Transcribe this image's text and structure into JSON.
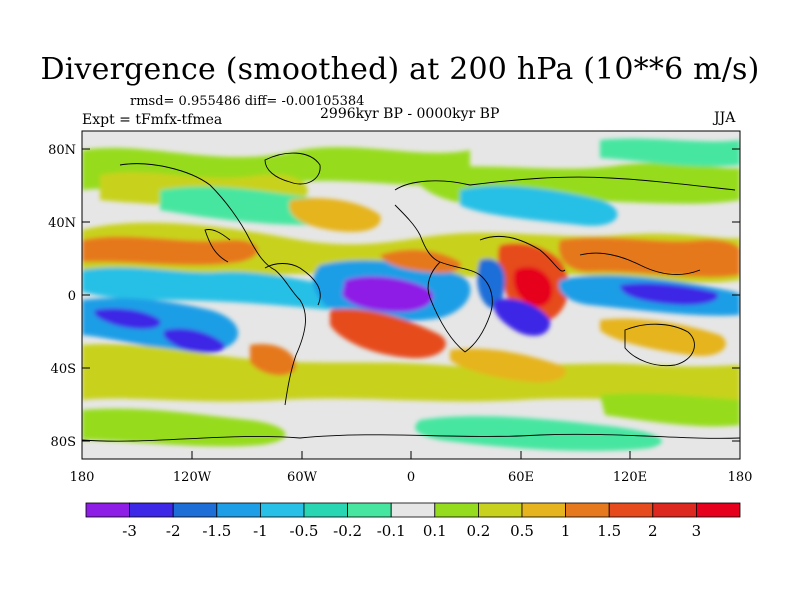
{
  "header": {
    "title": "Divergence (smoothed) at 200 hPa (10**6 m/s)",
    "stats": "rmsd= 0.955486 diff= -0.00105384",
    "experiment": "Expt = tFmfx-tfmea",
    "period": "2996kyr BP - 0000kyr BP",
    "season": "JJA"
  },
  "axes": {
    "lon_ticks": [
      "180",
      "120W",
      "60W",
      "0",
      "60E",
      "120E",
      "180"
    ],
    "lat_ticks": [
      "80N",
      "40N",
      "0",
      "40S",
      "80S"
    ]
  },
  "colorbar": {
    "labels": [
      "-3",
      "-2",
      "-1.5",
      "-1",
      "-0.5",
      "-0.2",
      "-0.1",
      "0.1",
      "0.2",
      "0.5",
      "1",
      "1.5",
      "2",
      "3"
    ],
    "colors": [
      "#8e1ee6",
      "#3c28e6",
      "#1e6ed8",
      "#1e9ee6",
      "#28c0e6",
      "#28d6b4",
      "#46e6a0",
      "#e6e6e6",
      "#96dc1e",
      "#c8d21e",
      "#e6b41e",
      "#e6781e",
      "#e64b1e",
      "#dc281e",
      "#e6001e"
    ]
  },
  "map": {
    "background_color": "#e6e6e6",
    "coastline_color": "#000000"
  }
}
